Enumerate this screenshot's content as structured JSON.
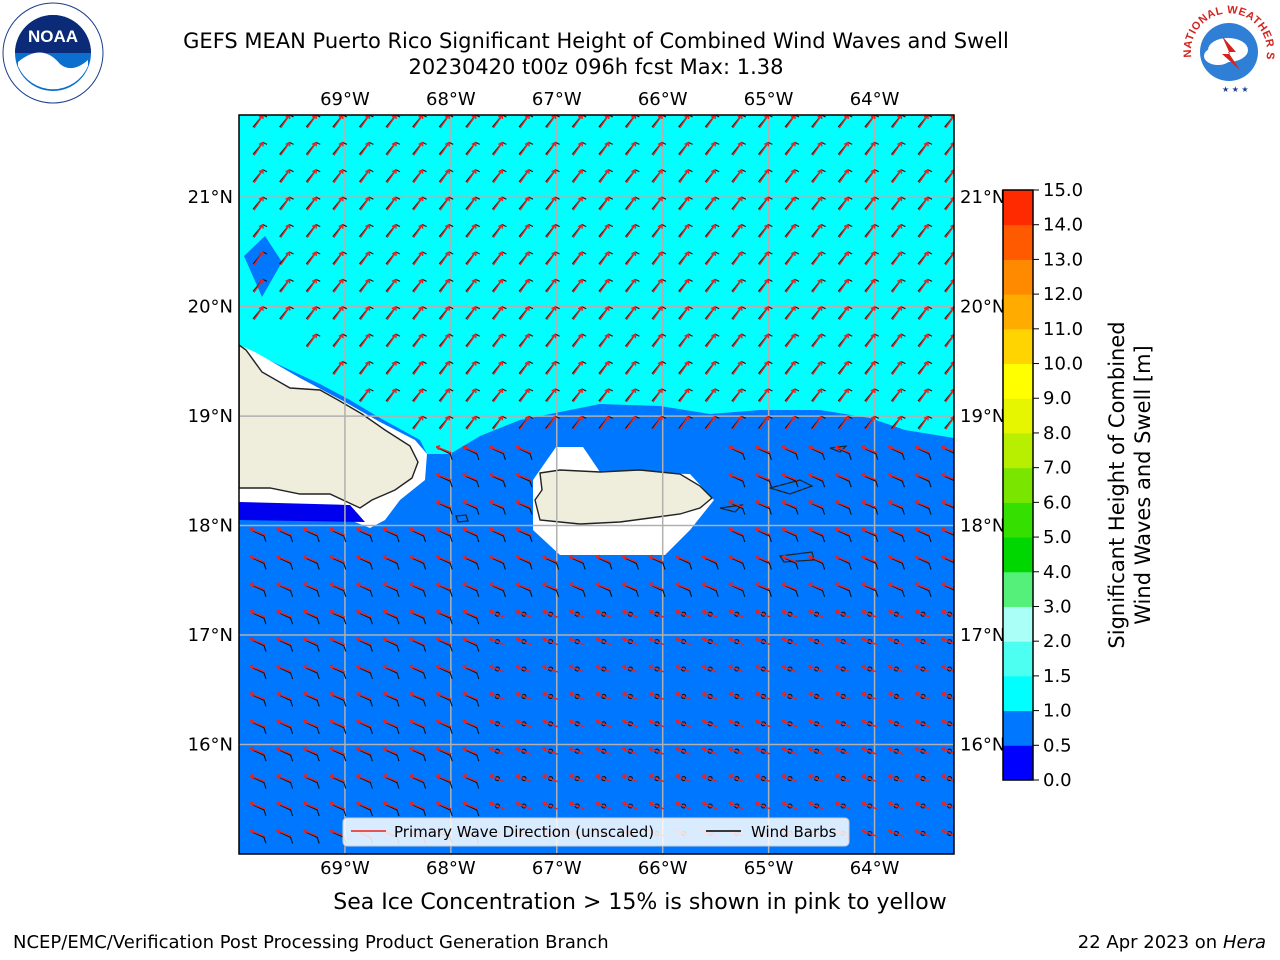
{
  "title": {
    "line1": "GEFS MEAN Puerto Rico Significant Height of Combined Wind Waves and Swell",
    "line2": "20230420 t00z 096h fcst   Max: 1.38"
  },
  "map": {
    "lon_labels": [
      "69°W",
      "68°W",
      "67°W",
      "66°W",
      "65°W",
      "64°W"
    ],
    "lat_labels": [
      "21°N",
      "20°N",
      "19°N",
      "18°N",
      "17°N",
      "16°N"
    ],
    "lon_range": [
      -70,
      -63.25
    ],
    "lat_range": [
      15,
      21.75
    ],
    "colors": {
      "shallow": "#0077ff",
      "mid": "#00ffff",
      "deep_blue": "#0000ee",
      "land": "#efeddc",
      "grid": "#b0b0b0",
      "arrow": "#e8231f"
    },
    "legend": {
      "wave_label": "Primary Wave Direction (unscaled)",
      "barb_label": "Wind Barbs"
    }
  },
  "colorbar": {
    "label_line1": "Significant Height of Combined",
    "label_line2": "Wind Waves and Swell [m]",
    "ticks": [
      "0.0",
      "0.5",
      "1.0",
      "1.5",
      "2.0",
      "3.0",
      "4.0",
      "5.0",
      "6.0",
      "7.0",
      "8.0",
      "9.0",
      "10.0",
      "11.0",
      "12.0",
      "13.0",
      "14.0",
      "15.0"
    ],
    "colors": [
      "#0000ff",
      "#0077ff",
      "#00ffff",
      "#4dfff1",
      "#aafff7",
      "#55f07a",
      "#00d600",
      "#35e000",
      "#7ae600",
      "#b8ee00",
      "#e6f500",
      "#ffff00",
      "#ffd400",
      "#ffab00",
      "#ff8a00",
      "#ff5a00",
      "#ff2a00",
      "#ff0000"
    ]
  },
  "notes": {
    "ice": "Sea Ice Concentration > 15% is shown in pink to yellow",
    "footer_left": "NCEP/EMC/Verification Post Processing Product Generation Branch",
    "footer_date": "22 Apr 2023 on ",
    "footer_machine": "Hera"
  },
  "logos": {
    "noaa_text": "NOAA",
    "nws_text": "NATIONAL WEATHER SERVICE"
  }
}
